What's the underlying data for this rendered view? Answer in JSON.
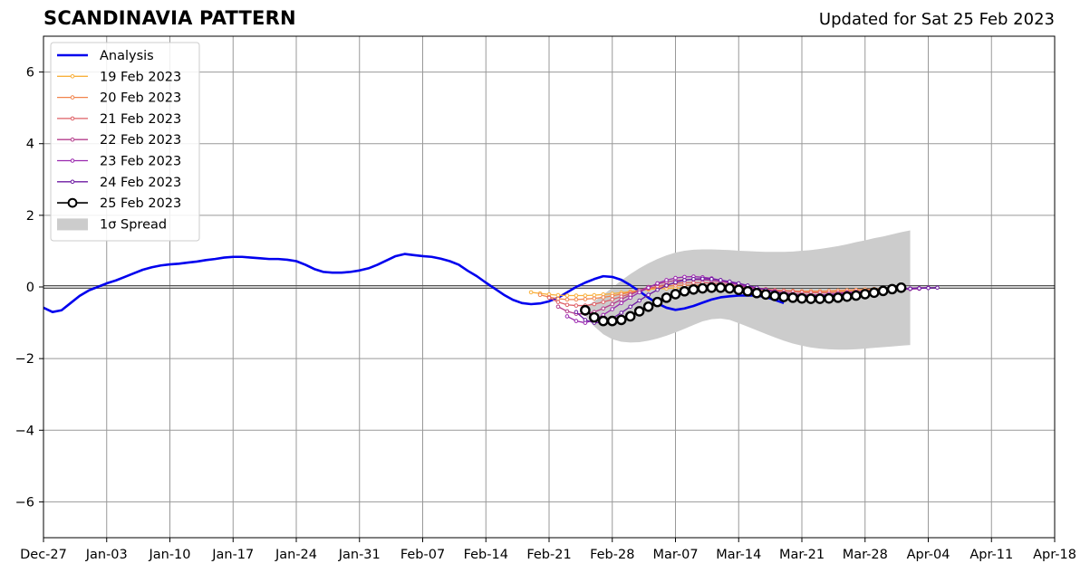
{
  "chart_data": {
    "type": "line",
    "title": "SCANDINAVIA PATTERN",
    "subtitle": "Updated for Sat 25 Feb 2023",
    "xlabel": "",
    "ylabel": "",
    "xlim": [
      "2022-12-27",
      "2023-04-18"
    ],
    "ylim": [
      -7,
      7
    ],
    "x_tick_labels": [
      "Dec-27",
      "Jan-03",
      "Jan-10",
      "Jan-17",
      "Jan-24",
      "Jan-31",
      "Feb-07",
      "Feb-14",
      "Feb-21",
      "Feb-28",
      "Mar-07",
      "Mar-14",
      "Mar-21",
      "Mar-28",
      "Apr-04",
      "Apr-11",
      "Apr-18"
    ],
    "x_tick_dates": [
      "2022-12-27",
      "2023-01-03",
      "2023-01-10",
      "2023-01-17",
      "2023-01-24",
      "2023-01-31",
      "2023-02-07",
      "2023-02-14",
      "2023-02-21",
      "2023-02-28",
      "2023-03-07",
      "2023-03-14",
      "2023-03-21",
      "2023-03-28",
      "2023-04-04",
      "2023-04-11",
      "2023-04-18"
    ],
    "y_ticks": [
      -6,
      -4,
      -2,
      0,
      2,
      4,
      6
    ],
    "y_tick_labels": [
      "−6",
      "−4",
      "−2",
      "0",
      "2",
      "4",
      "6"
    ],
    "grid": true,
    "legend_position": "top-left",
    "analysis": {
      "name": "Analysis",
      "color": "#0000ee",
      "start_date": "2022-12-27",
      "values": [
        -0.58,
        -0.7,
        -0.65,
        -0.45,
        -0.25,
        -0.1,
        0.0,
        0.1,
        0.18,
        0.28,
        0.38,
        0.48,
        0.55,
        0.6,
        0.63,
        0.65,
        0.68,
        0.71,
        0.75,
        0.78,
        0.82,
        0.84,
        0.84,
        0.82,
        0.8,
        0.78,
        0.78,
        0.76,
        0.72,
        0.62,
        0.5,
        0.42,
        0.4,
        0.4,
        0.42,
        0.46,
        0.52,
        0.62,
        0.74,
        0.86,
        0.92,
        0.89,
        0.86,
        0.84,
        0.79,
        0.72,
        0.62,
        0.45,
        0.3,
        0.12,
        -0.05,
        -0.22,
        -0.36,
        -0.45,
        -0.48,
        -0.46,
        -0.4,
        -0.3,
        -0.15,
        0.0,
        0.12,
        0.22,
        0.3,
        0.28,
        0.2,
        0.05,
        -0.12,
        -0.3,
        -0.46,
        -0.58,
        -0.64,
        -0.6,
        -0.53,
        -0.44,
        -0.35,
        -0.29,
        -0.26,
        -0.24,
        -0.24,
        -0.24,
        -0.28,
        -0.36,
        -0.45
      ]
    },
    "forecasts": [
      {
        "name": "19 Feb 2023",
        "color": "#f9b03c",
        "start_date": "2023-02-19",
        "values": [
          -0.15,
          -0.18,
          -0.21,
          -0.23,
          -0.24,
          -0.24,
          -0.24,
          -0.23,
          -0.21,
          -0.19,
          -0.16,
          -0.13,
          -0.1,
          -0.07,
          -0.05,
          -0.04,
          -0.03,
          -0.03,
          -0.03,
          -0.04,
          -0.05,
          -0.06,
          -0.07,
          -0.08,
          -0.09,
          -0.1,
          -0.1,
          -0.11,
          -0.11,
          -0.12,
          -0.12,
          -0.12,
          -0.12,
          -0.12,
          -0.11,
          -0.1,
          -0.09,
          -0.07,
          -0.06,
          -0.05,
          -0.04
        ]
      },
      {
        "name": "20 Feb 2023",
        "color": "#f1844c",
        "start_date": "2023-02-20",
        "values": [
          -0.22,
          -0.28,
          -0.33,
          -0.35,
          -0.35,
          -0.34,
          -0.32,
          -0.29,
          -0.25,
          -0.2,
          -0.15,
          -0.1,
          -0.05,
          -0.01,
          0.02,
          0.04,
          0.05,
          0.05,
          0.05,
          0.04,
          0.03,
          0.01,
          -0.01,
          -0.03,
          -0.05,
          -0.07,
          -0.09,
          -0.1,
          -0.11,
          -0.12,
          -0.12,
          -0.12,
          -0.11,
          -0.1,
          -0.09,
          -0.08,
          -0.07,
          -0.06,
          -0.05,
          -0.04,
          -0.03
        ]
      },
      {
        "name": "21 Feb 2023",
        "color": "#de5f65",
        "start_date": "2023-02-21",
        "values": [
          -0.3,
          -0.42,
          -0.5,
          -0.52,
          -0.52,
          -0.48,
          -0.42,
          -0.35,
          -0.27,
          -0.19,
          -0.11,
          -0.04,
          0.02,
          0.07,
          0.1,
          0.12,
          0.12,
          0.12,
          0.11,
          0.09,
          0.06,
          0.03,
          0.0,
          -0.03,
          -0.06,
          -0.09,
          -0.11,
          -0.13,
          -0.15,
          -0.16,
          -0.16,
          -0.16,
          -0.15,
          -0.14,
          -0.13,
          -0.12,
          -0.1,
          -0.09,
          -0.07,
          -0.06,
          -0.05
        ]
      },
      {
        "name": "22 Feb 2023",
        "color": "#b43c8b",
        "start_date": "2023-02-22",
        "values": [
          -0.55,
          -0.68,
          -0.75,
          -0.75,
          -0.7,
          -0.6,
          -0.48,
          -0.35,
          -0.22,
          -0.1,
          0.0,
          0.08,
          0.14,
          0.18,
          0.2,
          0.21,
          0.2,
          0.18,
          0.15,
          0.11,
          0.07,
          0.02,
          -0.03,
          -0.08,
          -0.12,
          -0.16,
          -0.19,
          -0.21,
          -0.22,
          -0.22,
          -0.21,
          -0.2,
          -0.18,
          -0.16,
          -0.14,
          -0.12,
          -0.1,
          -0.08,
          -0.07,
          -0.06,
          -0.05
        ]
      },
      {
        "name": "23 Feb 2023",
        "color": "#9a27ae",
        "start_date": "2023-02-23",
        "values": [
          -0.82,
          -0.95,
          -1.0,
          -0.92,
          -0.78,
          -0.62,
          -0.45,
          -0.3,
          -0.15,
          -0.02,
          0.1,
          0.19,
          0.25,
          0.28,
          0.29,
          0.27,
          0.24,
          0.19,
          0.13,
          0.06,
          -0.01,
          -0.08,
          -0.14,
          -0.19,
          -0.23,
          -0.25,
          -0.26,
          -0.25,
          -0.23,
          -0.21,
          -0.19,
          -0.16,
          -0.14,
          -0.12,
          -0.1,
          -0.08,
          -0.06,
          -0.05,
          -0.04,
          -0.03,
          -0.02
        ]
      },
      {
        "name": "24 Feb 2023",
        "color": "#6d1aa3",
        "start_date": "2023-02-24",
        "values": [
          -0.7,
          -0.92,
          -1.0,
          -0.98,
          -0.88,
          -0.72,
          -0.55,
          -0.38,
          -0.22,
          -0.08,
          0.04,
          0.13,
          0.19,
          0.22,
          0.23,
          0.22,
          0.19,
          0.15,
          0.1,
          0.04,
          -0.02,
          -0.08,
          -0.14,
          -0.19,
          -0.22,
          -0.24,
          -0.25,
          -0.25,
          -0.24,
          -0.22,
          -0.2,
          -0.18,
          -0.15,
          -0.13,
          -0.11,
          -0.09,
          -0.07,
          -0.05,
          -0.04,
          -0.03,
          -0.02
        ]
      },
      {
        "name": "25 Feb 2023",
        "color": "#000000",
        "start_date": "2023-02-25",
        "values": [
          -0.65,
          -0.85,
          -0.95,
          -0.95,
          -0.92,
          -0.82,
          -0.68,
          -0.55,
          -0.42,
          -0.3,
          -0.2,
          -0.12,
          -0.07,
          -0.04,
          -0.02,
          -0.02,
          -0.04,
          -0.08,
          -0.12,
          -0.17,
          -0.21,
          -0.25,
          -0.28,
          -0.3,
          -0.32,
          -0.33,
          -0.33,
          -0.32,
          -0.3,
          -0.27,
          -0.24,
          -0.2,
          -0.16,
          -0.11,
          -0.06,
          -0.02
        ]
      }
    ],
    "spread": {
      "name": "1σ Spread",
      "color": "#cccccc",
      "start_date": "2023-02-25",
      "upper": [
        -0.55,
        -0.4,
        -0.22,
        -0.02,
        0.18,
        0.36,
        0.52,
        0.66,
        0.78,
        0.88,
        0.96,
        1.01,
        1.04,
        1.05,
        1.05,
        1.04,
        1.03,
        1.01,
        1.0,
        0.99,
        0.98,
        0.98,
        0.98,
        0.99,
        1.01,
        1.03,
        1.06,
        1.1,
        1.14,
        1.19,
        1.25,
        1.3,
        1.36,
        1.41,
        1.47,
        1.53,
        1.58
      ],
      "lower": [
        -0.8,
        -1.1,
        -1.32,
        -1.46,
        -1.53,
        -1.55,
        -1.54,
        -1.5,
        -1.44,
        -1.36,
        -1.27,
        -1.17,
        -1.06,
        -0.96,
        -0.9,
        -0.88,
        -0.92,
        -1.01,
        -1.11,
        -1.21,
        -1.31,
        -1.41,
        -1.5,
        -1.58,
        -1.64,
        -1.69,
        -1.72,
        -1.74,
        -1.75,
        -1.75,
        -1.74,
        -1.72,
        -1.7,
        -1.68,
        -1.66,
        -1.64,
        -1.62
      ]
    }
  }
}
